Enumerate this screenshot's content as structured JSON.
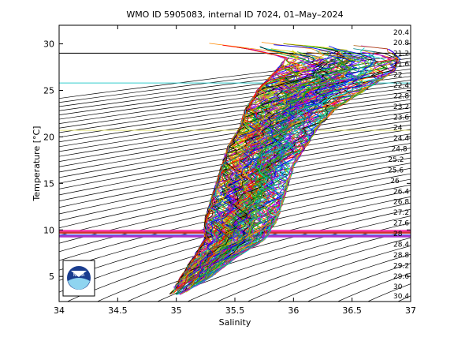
{
  "chart_data": {
    "type": "scatter",
    "title": "WMO ID 5905083, internal ID 7024, 01–May–2024",
    "xlabel": "Salinity",
    "ylabel": "Temperature [°C]",
    "xlim": [
      34,
      37
    ],
    "ylim": [
      2.3,
      32
    ],
    "xticks": [
      "34",
      "34.5",
      "35",
      "35.5",
      "36",
      "36.5",
      "37"
    ],
    "yticks": [
      "5",
      "10",
      "15",
      "20",
      "25",
      "30"
    ],
    "grid": false,
    "isopycnal_labels": [
      "20.4",
      "20.8",
      "21.2",
      "21.6",
      "22",
      "22.4",
      "22.8",
      "23.2",
      "23.6",
      "24",
      "24.4",
      "24.8",
      "25.2",
      "25.6",
      "26",
      "26.4",
      "26.8",
      "27.2",
      "27.6",
      "28",
      "28.4",
      "28.8",
      "29.2",
      "29.6",
      "30",
      "30.4"
    ],
    "horizontal_lines": [
      {
        "y": 29.0,
        "color": "#000000"
      },
      {
        "y": 25.8,
        "color": "#33cccc"
      },
      {
        "y": 20.7,
        "color": "#e6e680"
      },
      {
        "y": 9.9,
        "color": "#ff33aa"
      },
      {
        "y": 9.7,
        "color": "#cc3333"
      },
      {
        "y": 9.4,
        "color": "#4455ee"
      },
      {
        "y": 9.3,
        "color": "#aa33cc"
      }
    ],
    "profile_envelope": [
      {
        "t": 3.0,
        "s_min": 34.95,
        "s_max": 35.05
      },
      {
        "t": 5.0,
        "s_min": 35.05,
        "s_max": 35.3
      },
      {
        "t": 7.0,
        "s_min": 35.15,
        "s_max": 35.5
      },
      {
        "t": 9.0,
        "s_min": 35.25,
        "s_max": 35.75
      },
      {
        "t": 11.0,
        "s_min": 35.25,
        "s_max": 35.85
      },
      {
        "t": 13.0,
        "s_min": 35.3,
        "s_max": 35.9
      },
      {
        "t": 15.0,
        "s_min": 35.35,
        "s_max": 35.95
      },
      {
        "t": 17.0,
        "s_min": 35.4,
        "s_max": 36.0
      },
      {
        "t": 19.0,
        "s_min": 35.45,
        "s_max": 36.1
      },
      {
        "t": 21.0,
        "s_min": 35.55,
        "s_max": 36.2
      },
      {
        "t": 23.0,
        "s_min": 35.6,
        "s_max": 36.35
      },
      {
        "t": 25.0,
        "s_min": 35.7,
        "s_max": 36.6
      },
      {
        "t": 27.0,
        "s_min": 35.85,
        "s_max": 36.85
      },
      {
        "t": 28.5,
        "s_min": 35.95,
        "s_max": 36.9
      },
      {
        "t": 29.5,
        "s_min": 35.6,
        "s_max": 36.8
      },
      {
        "t": 30.2,
        "s_min": 35.2,
        "s_max": 36.3
      }
    ],
    "series_colors": [
      "#ff0000",
      "#00aa00",
      "#0000ff",
      "#00cccc",
      "#cc00cc",
      "#cccc00",
      "#000000",
      "#ff8800",
      "#8800ff",
      "#008888",
      "#aa5500",
      "#33aa33"
    ]
  },
  "logo": {
    "text": "NOAA"
  }
}
